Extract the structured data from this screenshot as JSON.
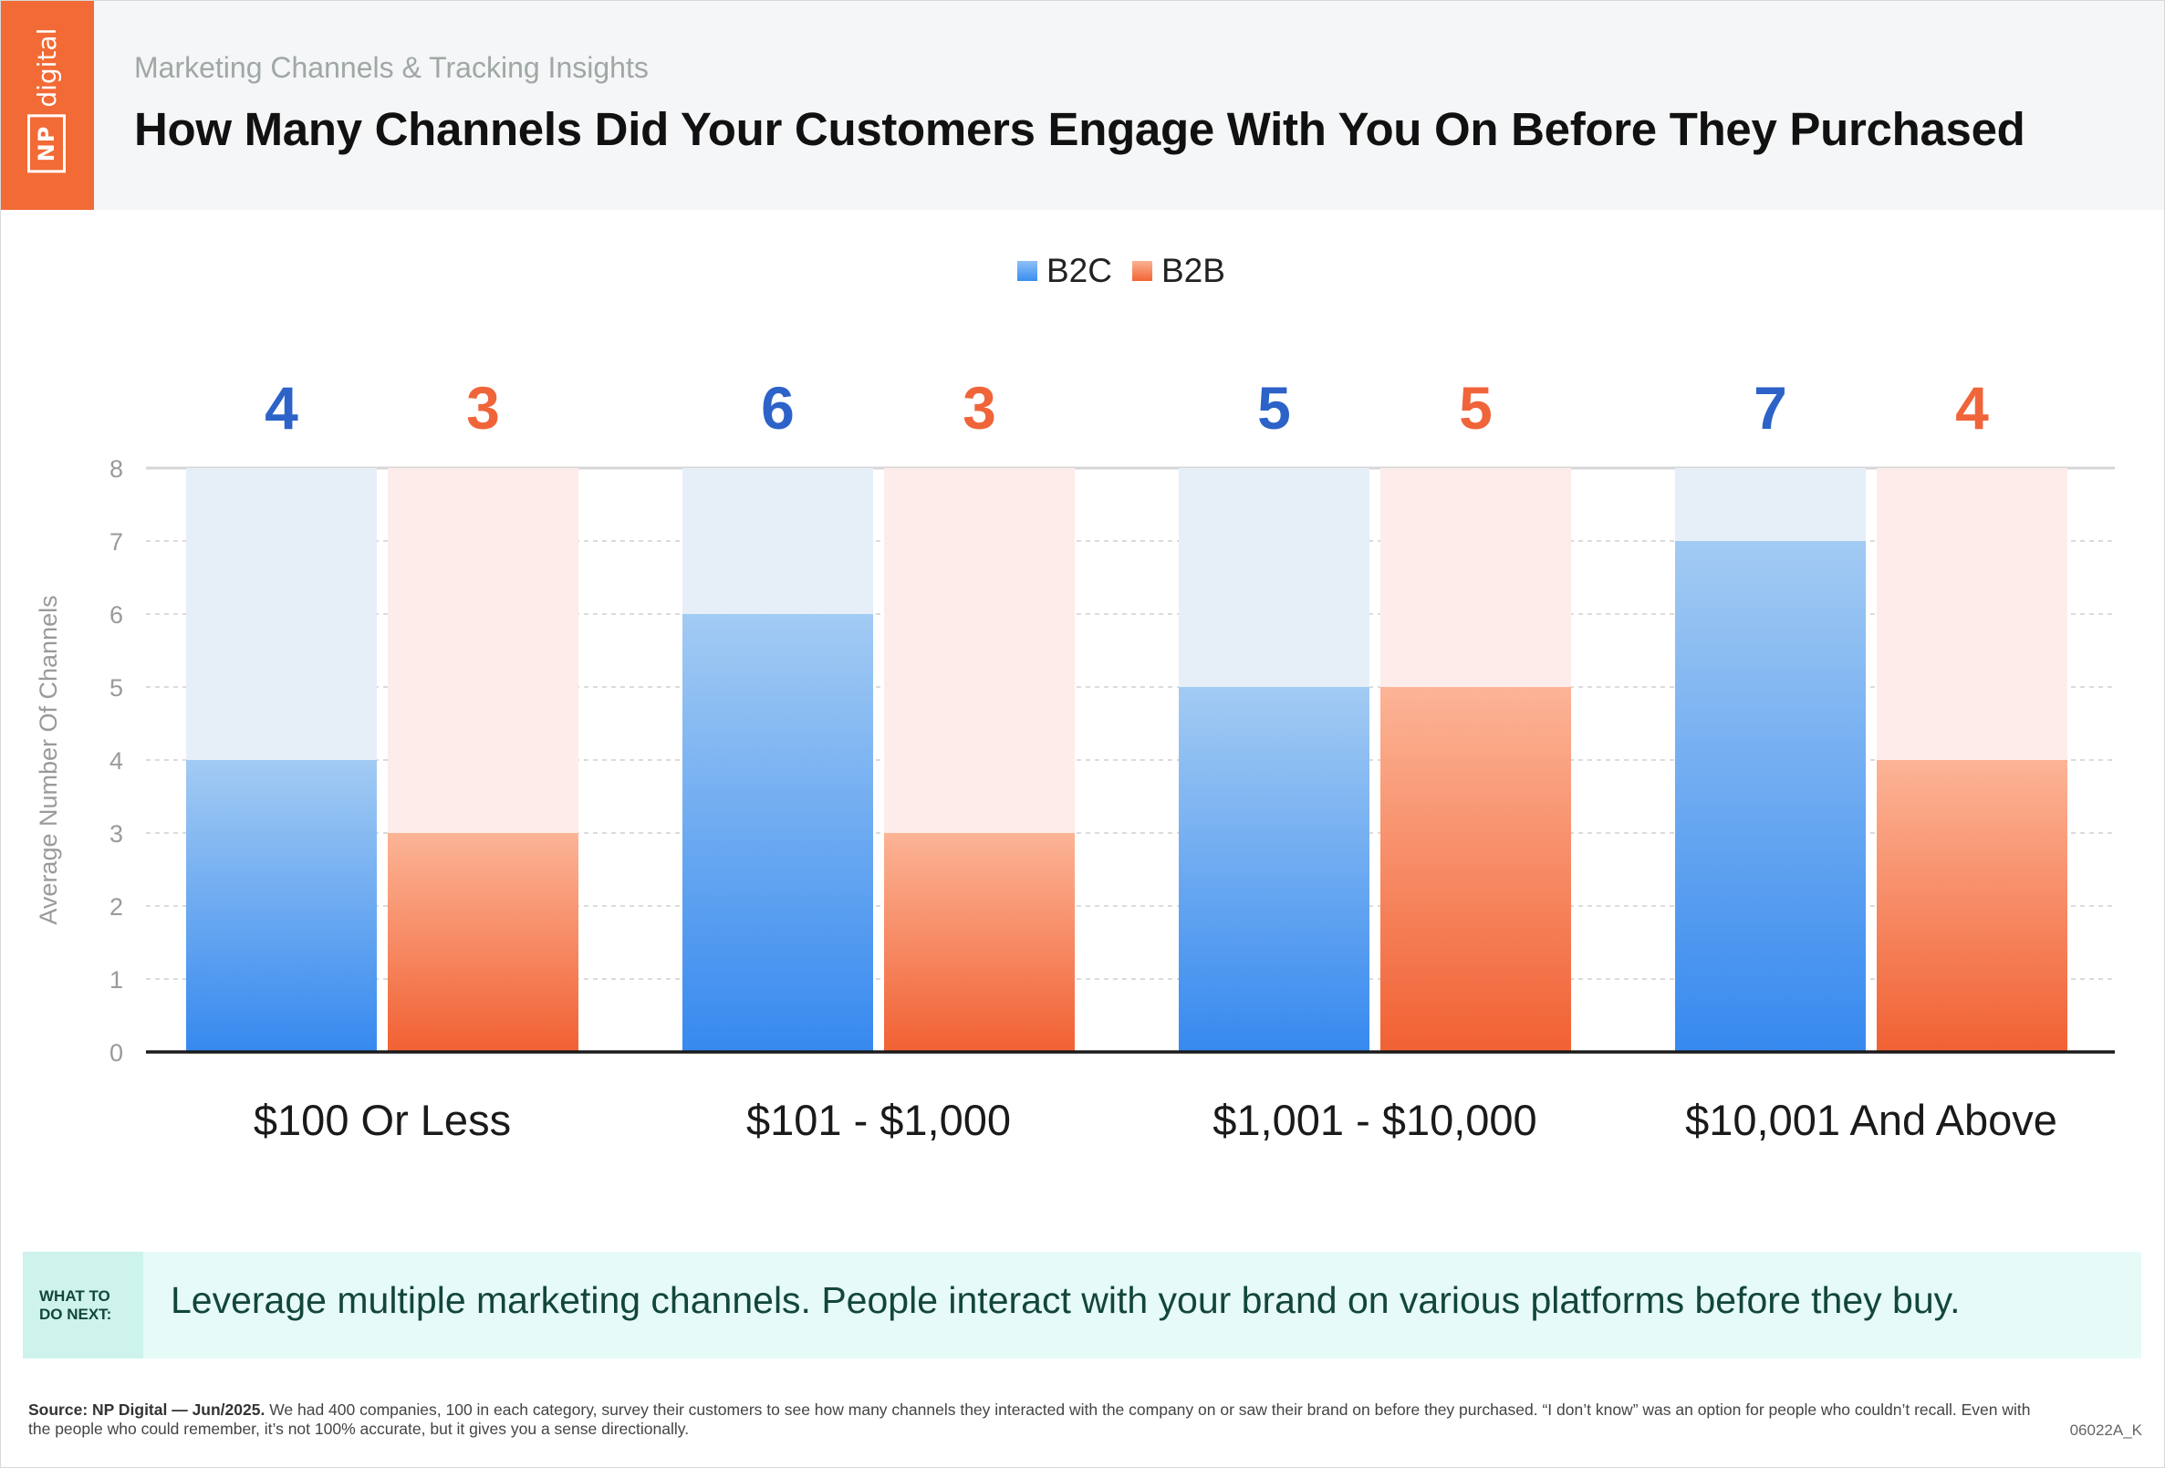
{
  "header": {
    "logo_np": "NP",
    "logo_digital": "digital",
    "kicker": "Marketing Channels & Tracking Insights",
    "title": "How Many Channels Did Your Customers Engage With You On Before They Purchased"
  },
  "colors": {
    "b2c": "#3a8ef0",
    "b2c_dark_label": "#2d63c8",
    "b2b": "#f26436",
    "b2b_label": "#f0643a",
    "b2c_track": "#e6eef8",
    "b2b_track": "#fdecea",
    "brand": "#f26a35"
  },
  "chart_data": {
    "type": "bar",
    "categories": [
      "$100 Or Less",
      "$101 - $1,000",
      "$1,001 - $10,000",
      "$10,001 And Above"
    ],
    "series": [
      {
        "name": "B2C",
        "values": [
          4,
          6,
          5,
          7
        ]
      },
      {
        "name": "B2B",
        "values": [
          3,
          3,
          5,
          4
        ]
      }
    ],
    "title": "How Many Channels Did Your Customers Engage With You On Before They Purchased",
    "xlabel": "",
    "ylabel": "Average Number Of Channels",
    "ylim": [
      0,
      8
    ],
    "yticks": [
      "0",
      "1",
      "2",
      "3",
      "4",
      "5",
      "6",
      "7",
      "8"
    ],
    "grid": true,
    "legend_position": "top-center"
  },
  "callout": {
    "tag": "WHAT TO DO NEXT:",
    "text": "Leverage multiple marketing channels. People interact with your brand on various platforms before they buy."
  },
  "footer": {
    "source_label": "Source: NP Digital — Jun/2025.",
    "source_text": " We had 400 companies, 100 in each category, survey their customers to see how many channels they interacted with the company on or saw their brand on before they purchased. “I don’t know” was an option for people who couldn’t recall. Even with the people who could remember, it’s not 100% accurate, but it gives you a sense directionally.",
    "code": "06022A_K"
  }
}
